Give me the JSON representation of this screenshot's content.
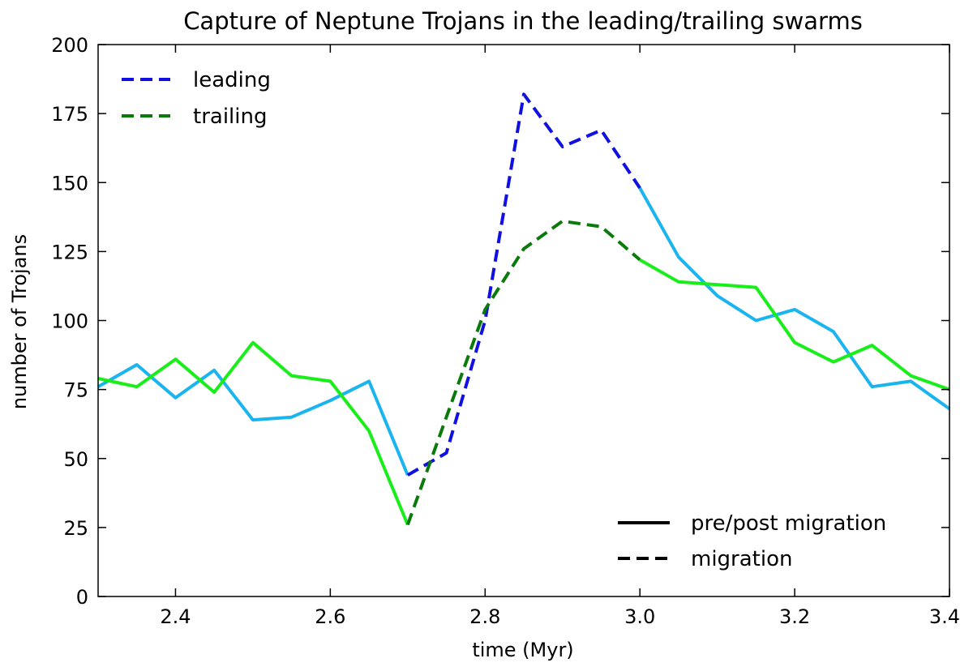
{
  "chart_data": {
    "type": "line",
    "title": "Capture of Neptune Trojans in the leading/trailing swarms",
    "xlabel": "time (Myr)",
    "ylabel": "number of Trojans",
    "xlim": [
      2.3,
      3.4
    ],
    "ylim": [
      0,
      200
    ],
    "xticks": [
      "2.4",
      "2.6",
      "2.8",
      "3.0",
      "3.2",
      "3.4"
    ],
    "yticks": [
      "0",
      "25",
      "50",
      "75",
      "100",
      "125",
      "150",
      "175",
      "200"
    ],
    "grid": false,
    "legends": {
      "color": {
        "placement": "top-left",
        "entries": [
          {
            "label": "leading",
            "color": "#1010e0"
          },
          {
            "label": "trailing",
            "color": "#0a7a0a"
          }
        ]
      },
      "style": {
        "placement": "bottom-right",
        "entries": [
          {
            "label": "pre/post migration",
            "dash": "solid"
          },
          {
            "label": "migration",
            "dash": "dashed"
          }
        ]
      }
    },
    "series": [
      {
        "name": "leading",
        "phases": [
          {
            "style": "solid",
            "color": "#1ab4ee",
            "x": [
              2.3,
              2.35,
              2.4,
              2.45,
              2.5,
              2.55,
              2.6,
              2.65,
              2.7
            ],
            "y": [
              76,
              84,
              72,
              82,
              64,
              65,
              71,
              78,
              44
            ]
          },
          {
            "style": "dashed",
            "color": "#1010e0",
            "x": [
              2.7,
              2.75,
              2.8,
              2.85,
              2.9,
              2.95,
              3.0
            ],
            "y": [
              44,
              52,
              100,
              182,
              163,
              169,
              148
            ]
          },
          {
            "style": "solid",
            "color": "#1ab4ee",
            "x": [
              3.0,
              3.05,
              3.1,
              3.15,
              3.2,
              3.25,
              3.3,
              3.35,
              3.4
            ],
            "y": [
              148,
              123,
              109,
              100,
              104,
              96,
              76,
              78,
              68
            ]
          }
        ]
      },
      {
        "name": "trailing",
        "phases": [
          {
            "style": "solid",
            "color": "#1aee1a",
            "x": [
              2.3,
              2.35,
              2.4,
              2.45,
              2.5,
              2.55,
              2.6,
              2.65,
              2.7
            ],
            "y": [
              79,
              76,
              86,
              74,
              92,
              80,
              78,
              60,
              26
            ]
          },
          {
            "style": "dashed",
            "color": "#0a7a0a",
            "x": [
              2.7,
              2.75,
              2.8,
              2.85,
              2.9,
              2.95,
              3.0
            ],
            "y": [
              26,
              65,
              104,
              126,
              136,
              134,
              122
            ]
          },
          {
            "style": "solid",
            "color": "#1aee1a",
            "x": [
              3.0,
              3.05,
              3.1,
              3.15,
              3.2,
              3.25,
              3.3,
              3.35,
              3.4
            ],
            "y": [
              122,
              114,
              113,
              112,
              92,
              85,
              91,
              80,
              75
            ]
          }
        ]
      }
    ]
  }
}
